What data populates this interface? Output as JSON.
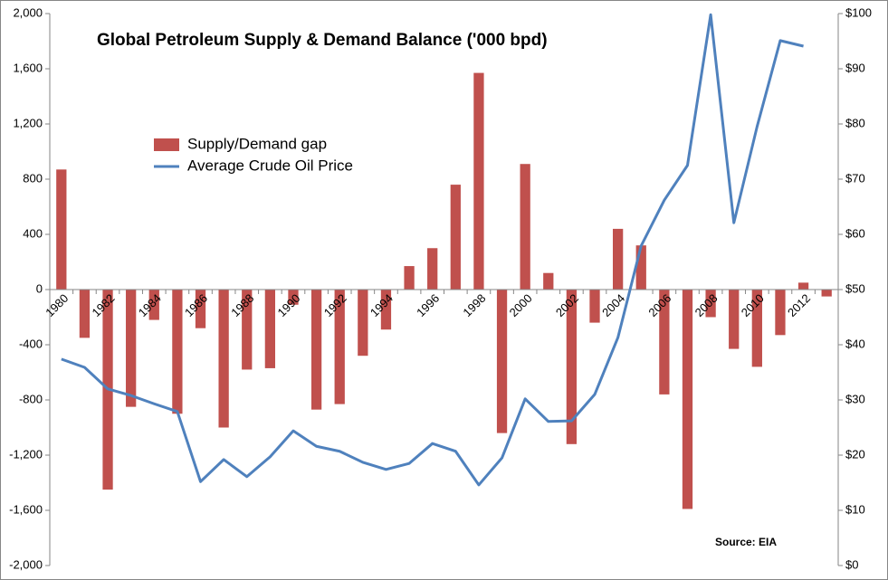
{
  "chart_data": {
    "type": "bar_line",
    "title": "Global Petroleum Supply & Demand Balance ('000 bpd)",
    "annotation": "Source: EIA",
    "categories": [
      "1980",
      null,
      "1982",
      null,
      "1984",
      null,
      "1986",
      null,
      "1988",
      null,
      "1990",
      null,
      "1992",
      null,
      "1994",
      null,
      "1996",
      null,
      "1998",
      null,
      "2000",
      null,
      "2002",
      null,
      "2004",
      null,
      "2006",
      null,
      "2008",
      null,
      "2010",
      null,
      "2012",
      null
    ],
    "series": [
      {
        "name": "Supply/Demand  gap",
        "color": "#c0504d",
        "type": "bar",
        "values": [
          870,
          -350,
          -1450,
          -850,
          -220,
          -900,
          -280,
          -1000,
          -580,
          -570,
          -110,
          -870,
          -830,
          -480,
          -290,
          170,
          300,
          760,
          1570,
          -1040,
          910,
          120,
          -1120,
          -240,
          440,
          320,
          -760,
          -1590,
          -200,
          -430,
          -560,
          -330,
          50,
          -50
        ]
      },
      {
        "name": "Average Crude Oil Price",
        "color": "#4f81bd",
        "type": "line",
        "axis": "y2",
        "values": [
          37.4,
          35.9,
          32,
          30.8,
          29.3,
          27.9,
          15.2,
          19.2,
          16.1,
          19.7,
          24.4,
          21.6,
          20.7,
          18.7,
          17.4,
          18.5,
          22.1,
          20.7,
          14.6,
          19.5,
          30.2,
          26.1,
          26.2,
          31,
          41.3,
          57.9,
          66.2,
          72.5,
          99.8,
          62.1,
          79.5,
          95.1,
          94.1,
          null
        ]
      }
    ],
    "ylim": [
      -2000,
      2000
    ],
    "yticks": [
      {
        "value": -2000,
        "label": "-2,000"
      },
      {
        "value": -1600,
        "label": "-1,600"
      },
      {
        "value": -1200,
        "label": "-1,200"
      },
      -800,
      -400,
      0,
      400,
      800,
      {
        "value": 1200,
        "label": "1,200"
      },
      {
        "value": 1600,
        "label": "1,600"
      },
      {
        "value": 2000,
        "label": "2,000"
      }
    ],
    "y2lim": [
      0,
      100
    ],
    "y2ticks": [
      {
        "value": 0,
        "label": "$0"
      },
      {
        "value": 10,
        "label": "$10"
      },
      {
        "value": 20,
        "label": "$20"
      },
      {
        "value": 30,
        "label": "$30"
      },
      {
        "value": 40,
        "label": "$40"
      },
      {
        "value": 50,
        "label": "$50"
      },
      {
        "value": 60,
        "label": "$60"
      },
      {
        "value": 70,
        "label": "$70"
      },
      {
        "value": 80,
        "label": "$80"
      },
      {
        "value": 90,
        "label": "$90"
      },
      {
        "value": 100,
        "label": "$100"
      }
    ],
    "grid": false
  }
}
